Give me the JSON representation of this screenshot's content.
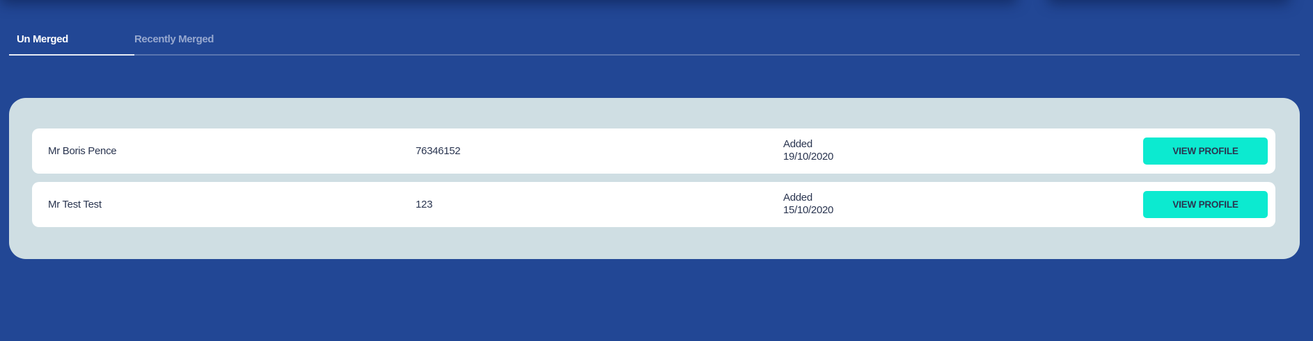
{
  "tabs": [
    {
      "label": "Un Merged",
      "active": true
    },
    {
      "label": "Recently Merged",
      "active": false
    }
  ],
  "records": [
    {
      "name": "Mr Boris Pence",
      "number": "76346152",
      "added_label": "Added",
      "added_date": "19/10/2020",
      "action": "VIEW PROFILE"
    },
    {
      "name": "Mr Test Test",
      "number": "123",
      "added_label": "Added",
      "added_date": "15/10/2020",
      "action": "VIEW PROFILE"
    }
  ],
  "colors": {
    "background": "#224795",
    "panel": "#cfdee3",
    "button": "#0cead0",
    "text": "#2a3550"
  }
}
